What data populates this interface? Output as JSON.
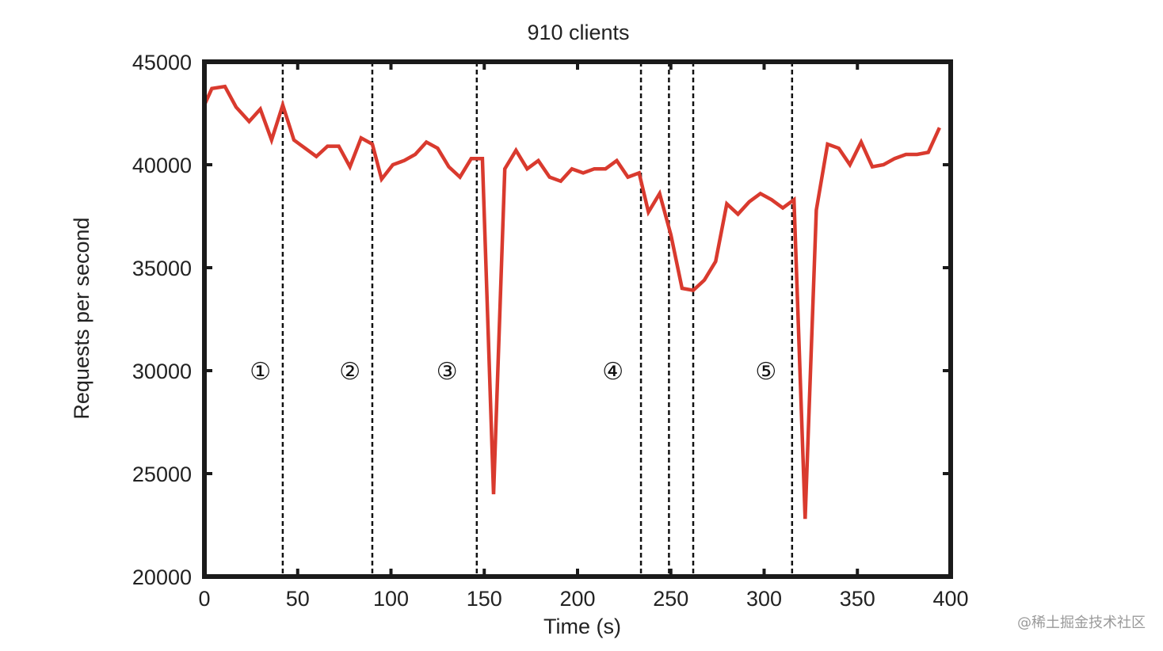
{
  "chart_data": {
    "type": "line",
    "title": "910 clients",
    "xlabel": "Time (s)",
    "ylabel": "Requests per second",
    "xlim": [
      0,
      400
    ],
    "ylim": [
      20000,
      45000
    ],
    "xticks": [
      "0",
      "50",
      "100",
      "150",
      "200",
      "250",
      "300",
      "350",
      "400"
    ],
    "yticks": [
      "20000",
      "25000",
      "30000",
      "35000",
      "40000",
      "45000"
    ],
    "grid": false,
    "series": [
      {
        "color": "#d93a2e",
        "points": [
          [
            0,
            42900
          ],
          [
            4,
            43700
          ],
          [
            11,
            43800
          ],
          [
            17,
            42800
          ],
          [
            24,
            42100
          ],
          [
            30,
            42700
          ],
          [
            36,
            41200
          ],
          [
            42,
            42900
          ],
          [
            48,
            41200
          ],
          [
            54,
            40800
          ],
          [
            60,
            40400
          ],
          [
            66,
            40900
          ],
          [
            72,
            40900
          ],
          [
            78,
            39900
          ],
          [
            84,
            41300
          ],
          [
            90,
            41000
          ],
          [
            95,
            39300
          ],
          [
            101,
            40000
          ],
          [
            107,
            40200
          ],
          [
            113,
            40500
          ],
          [
            119,
            41100
          ],
          [
            125,
            40800
          ],
          [
            131,
            39900
          ],
          [
            137,
            39400
          ],
          [
            143,
            40300
          ],
          [
            149,
            40300
          ],
          [
            155,
            24000
          ],
          [
            161,
            39800
          ],
          [
            167,
            40700
          ],
          [
            173,
            39800
          ],
          [
            179,
            40200
          ],
          [
            185,
            39400
          ],
          [
            191,
            39200
          ],
          [
            197,
            39800
          ],
          [
            203,
            39600
          ],
          [
            209,
            39800
          ],
          [
            215,
            39800
          ],
          [
            221,
            40200
          ],
          [
            227,
            39400
          ],
          [
            233,
            39600
          ],
          [
            238,
            37700
          ],
          [
            244,
            38600
          ],
          [
            250,
            36600
          ],
          [
            256,
            34000
          ],
          [
            262,
            33900
          ],
          [
            268,
            34400
          ],
          [
            274,
            35300
          ],
          [
            280,
            38100
          ],
          [
            286,
            37600
          ],
          [
            292,
            38200
          ],
          [
            298,
            38600
          ],
          [
            304,
            38300
          ],
          [
            310,
            37900
          ],
          [
            316,
            38300
          ],
          [
            322,
            22800
          ],
          [
            328,
            37800
          ],
          [
            334,
            41000
          ],
          [
            340,
            40800
          ],
          [
            346,
            40000
          ],
          [
            352,
            41100
          ],
          [
            358,
            39900
          ],
          [
            364,
            40000
          ],
          [
            370,
            40300
          ],
          [
            376,
            40500
          ],
          [
            382,
            40500
          ],
          [
            388,
            40600
          ],
          [
            394,
            41800
          ]
        ]
      }
    ],
    "vlines": [
      42,
      90,
      146,
      234,
      249,
      262,
      315
    ],
    "annotations": [
      {
        "text": "①",
        "x": 30,
        "y": 30000
      },
      {
        "text": "②",
        "x": 78,
        "y": 30000
      },
      {
        "text": "③",
        "x": 130,
        "y": 30000
      },
      {
        "text": "④",
        "x": 219,
        "y": 30000
      },
      {
        "text": "⑤",
        "x": 301,
        "y": 30000
      }
    ]
  },
  "watermark": "@稀土掘金技术社区"
}
